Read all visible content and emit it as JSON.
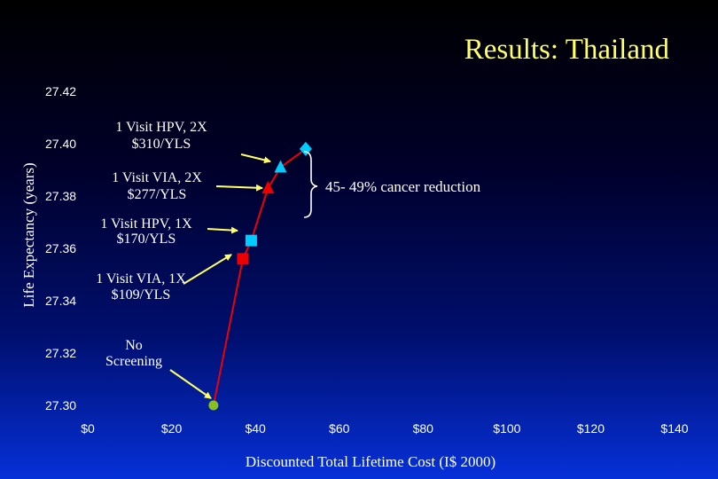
{
  "chart_data": {
    "type": "line",
    "title": "Results: Thailand",
    "xlabel": "Discounted Total Lifetime Cost (I$ 2000)",
    "ylabel": "Life Expectancy (years)",
    "xlim": [
      0,
      140
    ],
    "ylim": [
      27.3,
      27.42
    ],
    "x_tick_labels": [
      "$0",
      "$20",
      "$40",
      "$60",
      "$80",
      "$100",
      "$120",
      "$140"
    ],
    "y_tick_labels": [
      "27.30",
      "27.32",
      "27.34",
      "27.36",
      "27.38",
      "27.40",
      "27.42"
    ],
    "grid": false,
    "series": [
      {
        "values": [
          {
            "x": 30,
            "y": 27.3,
            "marker": "circle",
            "color": "#88c020"
          },
          {
            "x": 37,
            "y": 27.356,
            "marker": "square",
            "color": "#ee0000"
          },
          {
            "x": 39,
            "y": 27.363,
            "marker": "square",
            "color": "#00ccff"
          },
          {
            "x": 43,
            "y": 27.383,
            "marker": "triangle",
            "color": "#ee0000"
          },
          {
            "x": 46,
            "y": 27.391,
            "marker": "triangle",
            "color": "#00ccff"
          },
          {
            "x": 52,
            "y": 27.398,
            "marker": "diamond",
            "color": "#00ccff"
          }
        ],
        "color": "#ee0000"
      }
    ],
    "annotations": [
      {
        "lines": [
          "1 Visit HPV, 2X",
          "$310/YLS"
        ]
      },
      {
        "lines": [
          "1 Visit VIA, 2X",
          "$277/YLS"
        ]
      },
      {
        "lines": [
          "1 Visit HPV, 1X",
          "$170/YLS"
        ]
      },
      {
        "lines": [
          "1 Visit VIA, 1X",
          "$109/YLS"
        ]
      },
      {
        "lines": [
          "No",
          "Screening"
        ]
      }
    ],
    "bracket_label": "45- 49% cancer reduction"
  },
  "colors": {
    "title": "#ffff66",
    "text": "#ffffff",
    "arrow": "#ffff66",
    "line": "#ee0000"
  }
}
